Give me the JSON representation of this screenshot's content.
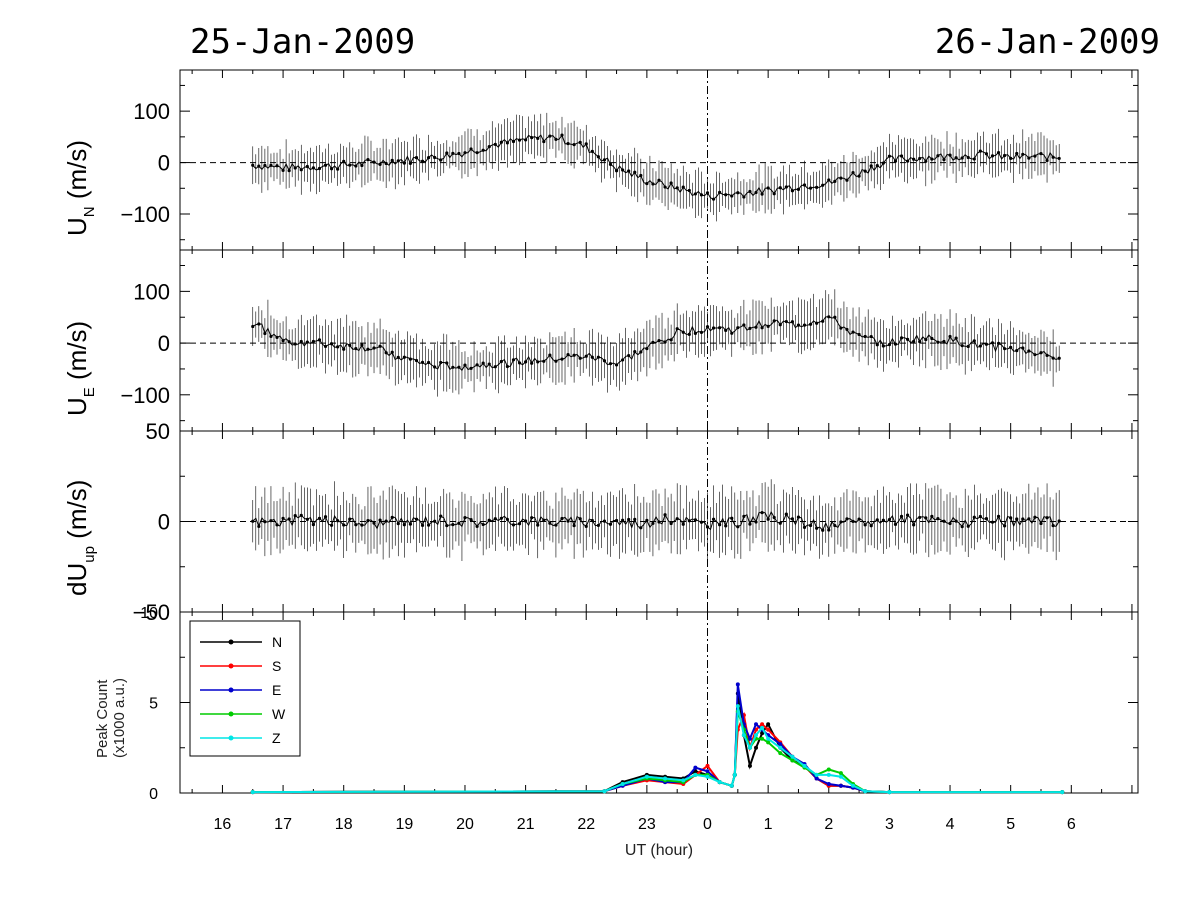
{
  "header": {
    "left_date": "25-Jan-2009",
    "right_date": "26-Jan-2009"
  },
  "x_axis": {
    "label": "UT (hour)",
    "ticks": [
      "16",
      "17",
      "18",
      "19",
      "20",
      "21",
      "22",
      "23",
      "0",
      "1",
      "2",
      "3",
      "4",
      "5",
      "6"
    ]
  },
  "panels": {
    "un": {
      "ylabel": "U",
      "ylabel_sub": "N",
      "ylabel_unit": " (m/s)",
      "ylim": [
        -170,
        180
      ],
      "ticks": [
        {
          "v": 100,
          "t": "100"
        },
        {
          "v": 0,
          "t": "0"
        },
        {
          "v": -100,
          "t": "−100"
        }
      ]
    },
    "ue": {
      "ylabel": "U",
      "ylabel_sub": "E",
      "ylabel_unit": " (m/s)",
      "ylim": [
        -170,
        180
      ],
      "ticks": [
        {
          "v": 100,
          "t": "100"
        },
        {
          "v": 0,
          "t": "0"
        },
        {
          "v": -100,
          "t": "−100"
        }
      ]
    },
    "dup": {
      "ylabel": "dU",
      "ylabel_sub": "up",
      "ylabel_unit": " (m/s)",
      "ylim": [
        -50,
        50
      ],
      "ticks": [
        {
          "v": 50,
          "t": "50"
        },
        {
          "v": 0,
          "t": "0"
        },
        {
          "v": -50,
          "t": "−50"
        }
      ]
    },
    "peak": {
      "ylabel_line1": "Peak Count",
      "ylabel_line2": "(x1000 a.u.)",
      "ylim": [
        0,
        10
      ],
      "ticks": [
        {
          "v": 10,
          "t": "10"
        },
        {
          "v": 5,
          "t": "5"
        },
        {
          "v": 0,
          "t": "0"
        }
      ]
    }
  },
  "legend": [
    {
      "label": "N",
      "color": "#000000"
    },
    {
      "label": "S",
      "color": "#ff0000"
    },
    {
      "label": "E",
      "color": "#0000cc"
    },
    {
      "label": "W",
      "color": "#00cc00"
    },
    {
      "label": "Z",
      "color": "#00e5e5"
    }
  ],
  "chart_data": [
    {
      "type": "scatter",
      "name": "U_N",
      "ylabel": "U_N (m/s)",
      "xlabel": "UT (hour)",
      "xlim": [
        15.3,
        31.1
      ],
      "ylim": [
        -170,
        180
      ],
      "x": [
        16.5,
        17.0,
        17.5,
        18.0,
        18.5,
        19.0,
        19.5,
        20.0,
        20.5,
        21.0,
        21.5,
        22.0,
        22.5,
        23.0,
        23.5,
        24.0,
        24.5,
        25.0,
        25.5,
        26.0,
        26.5,
        27.0,
        27.5,
        28.0,
        28.5,
        29.0,
        29.5,
        29.85
      ],
      "y": [
        -5,
        -10,
        -8,
        -5,
        0,
        5,
        10,
        20,
        35,
        45,
        50,
        30,
        -10,
        -35,
        -50,
        -65,
        -60,
        -55,
        -45,
        -40,
        -20,
        5,
        10,
        12,
        15,
        10,
        12,
        10
      ],
      "error": 35
    },
    {
      "type": "scatter",
      "name": "U_E",
      "ylabel": "U_E (m/s)",
      "xlabel": "UT (hour)",
      "xlim": [
        15.3,
        31.1
      ],
      "ylim": [
        -170,
        180
      ],
      "x": [
        16.5,
        17.0,
        17.5,
        18.0,
        18.5,
        19.0,
        19.5,
        20.0,
        20.5,
        21.0,
        21.5,
        22.0,
        22.5,
        23.0,
        23.5,
        24.0,
        24.5,
        25.0,
        25.5,
        26.0,
        26.5,
        27.0,
        27.5,
        28.0,
        28.5,
        29.0,
        29.5,
        29.85
      ],
      "y": [
        40,
        5,
        0,
        -5,
        -10,
        -30,
        -45,
        -45,
        -40,
        -35,
        -30,
        -25,
        -40,
        -10,
        20,
        30,
        25,
        40,
        35,
        50,
        10,
        0,
        10,
        5,
        -5,
        -10,
        -20,
        -30
      ],
      "error": 40
    },
    {
      "type": "scatter",
      "name": "dU_up",
      "ylabel": "dU_up (m/s)",
      "xlabel": "UT (hour)",
      "xlim": [
        15.3,
        31.1
      ],
      "ylim": [
        -50,
        50
      ],
      "x": [
        16.5,
        17.0,
        17.5,
        18.0,
        18.5,
        19.0,
        19.5,
        20.0,
        20.5,
        21.0,
        21.5,
        22.0,
        22.5,
        23.0,
        23.5,
        24.0,
        24.5,
        25.0,
        25.5,
        26.0,
        26.5,
        27.0,
        27.5,
        28.0,
        28.5,
        29.0,
        29.5,
        29.85
      ],
      "y": [
        0,
        0,
        1,
        0,
        -1,
        0,
        1,
        0,
        0,
        1,
        0,
        0,
        0,
        -1,
        2,
        -2,
        0,
        3,
        0,
        -3,
        0,
        0,
        1,
        0,
        0,
        0,
        0,
        0
      ],
      "error": 14
    },
    {
      "type": "line",
      "name": "Peak Count",
      "ylabel": "Peak Count (x1000 a.u.)",
      "xlabel": "UT (hour)",
      "xlim": [
        15.3,
        31.1
      ],
      "ylim": [
        0,
        10
      ],
      "x": [
        16.5,
        22.3,
        22.6,
        23.0,
        23.3,
        23.6,
        23.8,
        24.0,
        24.2,
        24.4,
        24.45,
        24.5,
        24.6,
        24.7,
        24.8,
        24.9,
        25.0,
        25.2,
        25.4,
        25.6,
        25.8,
        26.0,
        26.2,
        26.4,
        26.6,
        27.0,
        29.85
      ],
      "series": [
        {
          "name": "N",
          "color": "#000000",
          "values": [
            0.05,
            0.1,
            0.6,
            1.0,
            0.9,
            0.8,
            1.2,
            1.0,
            0.6,
            0.4,
            1.0,
            5.5,
            3.2,
            1.5,
            2.5,
            3.3,
            3.8,
            2.5,
            1.8,
            1.5,
            0.8,
            0.4,
            0.4,
            0.3,
            0.1,
            0.05,
            0.05
          ]
        },
        {
          "name": "S",
          "color": "#ff0000",
          "values": [
            0.05,
            0.1,
            0.4,
            0.7,
            0.6,
            0.5,
            1.0,
            1.5,
            0.6,
            0.4,
            1.0,
            3.5,
            4.3,
            2.5,
            3.5,
            3.8,
            3.5,
            2.8,
            2.0,
            1.5,
            0.8,
            0.4,
            0.4,
            0.3,
            0.1,
            0.05,
            0.05
          ]
        },
        {
          "name": "E",
          "color": "#0000cc",
          "values": [
            0.05,
            0.1,
            0.4,
            0.8,
            0.6,
            0.6,
            1.4,
            1.2,
            0.6,
            0.4,
            1.0,
            6.0,
            3.8,
            3.0,
            3.8,
            3.5,
            3.2,
            2.7,
            2.0,
            1.6,
            0.8,
            0.5,
            0.4,
            0.3,
            0.1,
            0.05,
            0.05
          ]
        },
        {
          "name": "W",
          "color": "#00cc00",
          "values": [
            0.05,
            0.1,
            0.5,
            0.8,
            0.7,
            0.6,
            1.0,
            1.0,
            0.6,
            0.4,
            1.0,
            4.5,
            3.5,
            2.5,
            3.0,
            3.0,
            2.8,
            2.2,
            1.8,
            1.4,
            1.0,
            1.3,
            1.1,
            0.5,
            0.1,
            0.05,
            0.05
          ]
        },
        {
          "name": "Z",
          "color": "#00e5e5",
          "values": [
            0.05,
            0.1,
            0.5,
            0.9,
            0.8,
            0.7,
            1.0,
            0.9,
            0.6,
            0.4,
            1.0,
            4.8,
            3.2,
            2.5,
            3.2,
            3.6,
            3.0,
            2.5,
            2.0,
            1.5,
            1.0,
            1.0,
            0.9,
            0.4,
            0.1,
            0.05,
            0.05
          ]
        }
      ]
    }
  ]
}
